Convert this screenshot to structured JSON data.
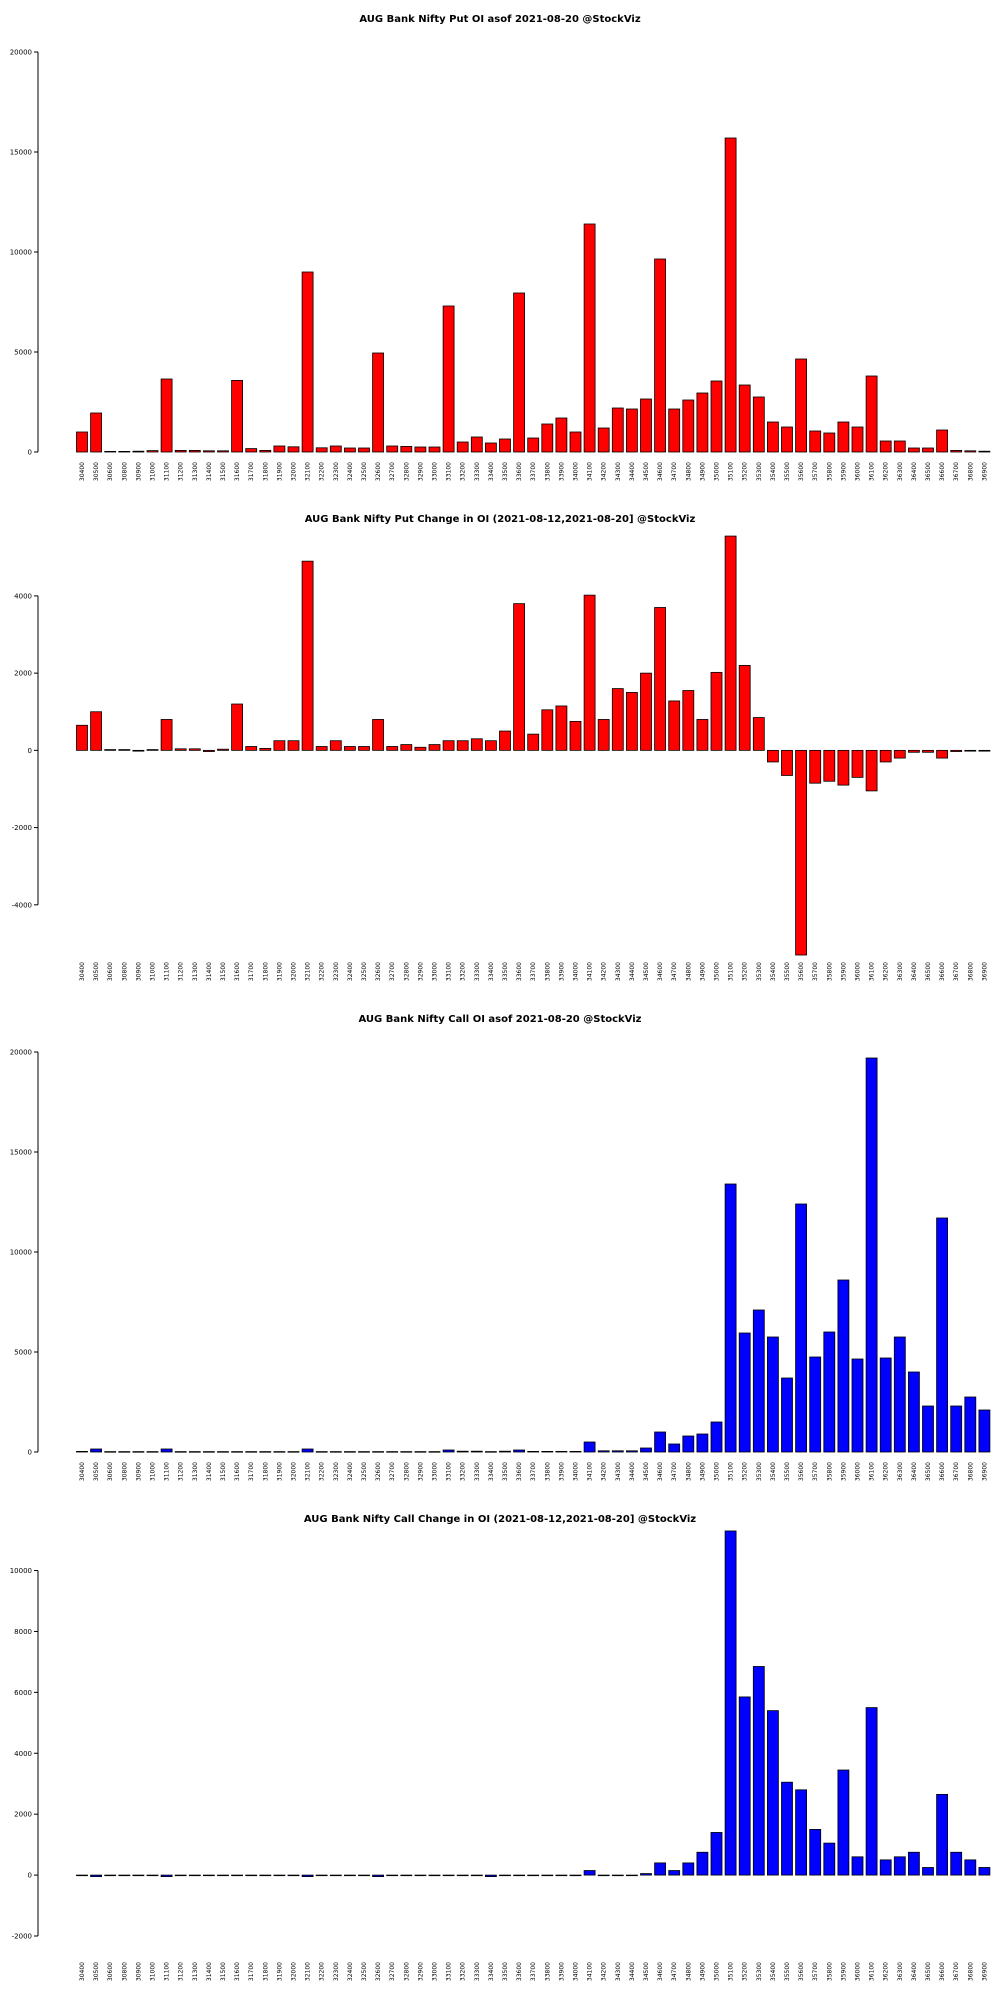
{
  "chart_data": [
    {
      "type": "bar",
      "title": "AUG Bank Nifty Put OI asof 2021-08-20 @StockViz",
      "bar_color": "#ff0000",
      "ylim": [
        0,
        20000
      ],
      "yticks": [
        0,
        5000,
        10000,
        15000,
        20000
      ],
      "categories": [
        "30400",
        "30500",
        "30600",
        "30800",
        "30900",
        "31000",
        "31100",
        "31200",
        "31300",
        "31400",
        "31500",
        "31600",
        "31700",
        "31800",
        "31900",
        "32000",
        "32100",
        "32200",
        "32300",
        "32400",
        "32500",
        "32600",
        "32700",
        "32800",
        "32900",
        "33000",
        "33100",
        "33200",
        "33300",
        "33400",
        "33500",
        "33600",
        "33700",
        "33800",
        "33900",
        "34000",
        "34100",
        "34200",
        "34300",
        "34400",
        "34500",
        "34600",
        "34700",
        "34800",
        "34900",
        "35000",
        "35100",
        "35200",
        "35300",
        "35400",
        "35500",
        "35600",
        "35700",
        "35800",
        "35900",
        "36000",
        "36100",
        "36200",
        "36300",
        "36400",
        "36500",
        "36600",
        "36700",
        "36800",
        "36900"
      ],
      "values": [
        1000,
        1950,
        30,
        30,
        40,
        70,
        3650,
        80,
        80,
        60,
        60,
        3580,
        170,
        80,
        300,
        260,
        9000,
        210,
        300,
        200,
        200,
        4950,
        300,
        280,
        250,
        250,
        7300,
        500,
        750,
        450,
        650,
        7950,
        700,
        1400,
        1700,
        1000,
        11400,
        1200,
        2200,
        2150,
        2650,
        9650,
        2150,
        2600,
        2950,
        3550,
        15700,
        3350,
        2750,
        1500,
        1250,
        4650,
        1050,
        950,
        1500,
        1250,
        3800,
        550,
        550,
        200,
        200,
        1100,
        80,
        60,
        40
      ],
      "xlabel": "",
      "ylabel": ""
    },
    {
      "type": "bar",
      "title": "AUG Bank Nifty Put Change in OI (2021-08-12,2021-08-20] @StockViz",
      "bar_color": "#ff0000",
      "ylim": [
        -5300,
        5500
      ],
      "yticks": [
        -4000,
        -2000,
        0,
        2000,
        4000
      ],
      "categories": [
        "30400",
        "30500",
        "30600",
        "30800",
        "30900",
        "31000",
        "31100",
        "31200",
        "31300",
        "31400",
        "31500",
        "31600",
        "31700",
        "31800",
        "31900",
        "32000",
        "32100",
        "32200",
        "32300",
        "32400",
        "32500",
        "32600",
        "32700",
        "32800",
        "32900",
        "33000",
        "33100",
        "33200",
        "33300",
        "33400",
        "33500",
        "33600",
        "33700",
        "33800",
        "33900",
        "34000",
        "34100",
        "34200",
        "34300",
        "34400",
        "34500",
        "34600",
        "34700",
        "34800",
        "34900",
        "35000",
        "35100",
        "35200",
        "35300",
        "35400",
        "35500",
        "35600",
        "35700",
        "35800",
        "35900",
        "36000",
        "36100",
        "36200",
        "36300",
        "36400",
        "36500",
        "36600",
        "36700",
        "36800",
        "36900"
      ],
      "values": [
        650,
        1000,
        20,
        20,
        -20,
        20,
        800,
        40,
        40,
        -30,
        30,
        1200,
        100,
        50,
        250,
        250,
        4900,
        100,
        250,
        100,
        100,
        800,
        100,
        150,
        80,
        150,
        250,
        250,
        300,
        250,
        500,
        3800,
        420,
        1050,
        1150,
        750,
        4020,
        800,
        1600,
        1500,
        2000,
        3700,
        1280,
        1550,
        800,
        2020,
        5550,
        2200,
        850,
        -300,
        -650,
        -5300,
        -850,
        -800,
        -900,
        -700,
        -1050,
        -300,
        -200,
        -50,
        -50,
        -200,
        -30,
        -20,
        -20
      ],
      "xlabel": "",
      "ylabel": ""
    },
    {
      "type": "bar",
      "title": "AUG Bank Nifty Call OI asof 2021-08-20 @StockViz",
      "bar_color": "#0000ff",
      "ylim": [
        0,
        20000
      ],
      "yticks": [
        0,
        5000,
        10000,
        15000,
        20000
      ],
      "categories": [
        "30400",
        "30500",
        "30600",
        "30800",
        "30900",
        "31000",
        "31100",
        "31200",
        "31300",
        "31400",
        "31500",
        "31600",
        "31700",
        "31800",
        "31900",
        "32000",
        "32100",
        "32200",
        "32300",
        "32400",
        "32500",
        "32600",
        "32700",
        "32800",
        "32900",
        "33000",
        "33100",
        "33200",
        "33300",
        "33400",
        "33500",
        "33600",
        "33700",
        "33800",
        "33900",
        "34000",
        "34100",
        "34200",
        "34300",
        "34400",
        "34500",
        "34600",
        "34700",
        "34800",
        "34900",
        "35000",
        "35100",
        "35200",
        "35300",
        "35400",
        "35500",
        "35600",
        "35700",
        "35800",
        "35900",
        "36000",
        "36100",
        "36200",
        "36300",
        "36400",
        "36500",
        "36600",
        "36700",
        "36800",
        "36900"
      ],
      "values": [
        30,
        150,
        20,
        20,
        20,
        20,
        150,
        20,
        20,
        20,
        20,
        20,
        20,
        20,
        20,
        20,
        150,
        20,
        20,
        20,
        20,
        20,
        20,
        20,
        20,
        20,
        100,
        40,
        40,
        20,
        40,
        100,
        30,
        30,
        30,
        30,
        500,
        60,
        60,
        60,
        200,
        1000,
        400,
        800,
        900,
        1500,
        13400,
        5950,
        7100,
        5750,
        3700,
        12400,
        4750,
        6000,
        8600,
        4650,
        19700,
        4700,
        5750,
        4000,
        2300,
        11700,
        2300,
        2750,
        2100
      ],
      "xlabel": "",
      "ylabel": ""
    },
    {
      "type": "bar",
      "title": "AUG Bank Nifty Call Change in OI (2021-08-12,2021-08-20] @StockViz",
      "bar_color": "#0000ff",
      "ylim": [
        -2000,
        11200
      ],
      "yticks": [
        -2000,
        0,
        2000,
        4000,
        6000,
        8000,
        10000
      ],
      "categories": [
        "30400",
        "30500",
        "30600",
        "30800",
        "30900",
        "31000",
        "31100",
        "31200",
        "31300",
        "31400",
        "31500",
        "31600",
        "31700",
        "31800",
        "31900",
        "32000",
        "32100",
        "32200",
        "32300",
        "32400",
        "32500",
        "32600",
        "32700",
        "32800",
        "32900",
        "33000",
        "33100",
        "33200",
        "33300",
        "33400",
        "33500",
        "33600",
        "33700",
        "33800",
        "33900",
        "34000",
        "34100",
        "34200",
        "34300",
        "34400",
        "34500",
        "34600",
        "34700",
        "34800",
        "34900",
        "35000",
        "35100",
        "35200",
        "35300",
        "35400",
        "35500",
        "35600",
        "35700",
        "35800",
        "35900",
        "36000",
        "36100",
        "36200",
        "36300",
        "36400",
        "36500",
        "36600",
        "36700",
        "36800",
        "36900"
      ],
      "values": [
        -20,
        -50,
        -20,
        -20,
        -20,
        -20,
        -50,
        -20,
        -20,
        -20,
        -20,
        -20,
        -20,
        -20,
        -20,
        -20,
        -50,
        -20,
        -20,
        -20,
        -20,
        -50,
        -20,
        -20,
        -20,
        -20,
        -20,
        -20,
        -20,
        -50,
        -20,
        -20,
        -20,
        -20,
        -20,
        -20,
        150,
        -20,
        -20,
        -20,
        50,
        400,
        150,
        400,
        750,
        1400,
        11300,
        5850,
        6850,
        5400,
        3050,
        2800,
        1500,
        1050,
        3450,
        600,
        5500,
        500,
        600,
        750,
        250,
        2650,
        750,
        500,
        250
      ],
      "xlabel": "",
      "ylabel": ""
    }
  ]
}
